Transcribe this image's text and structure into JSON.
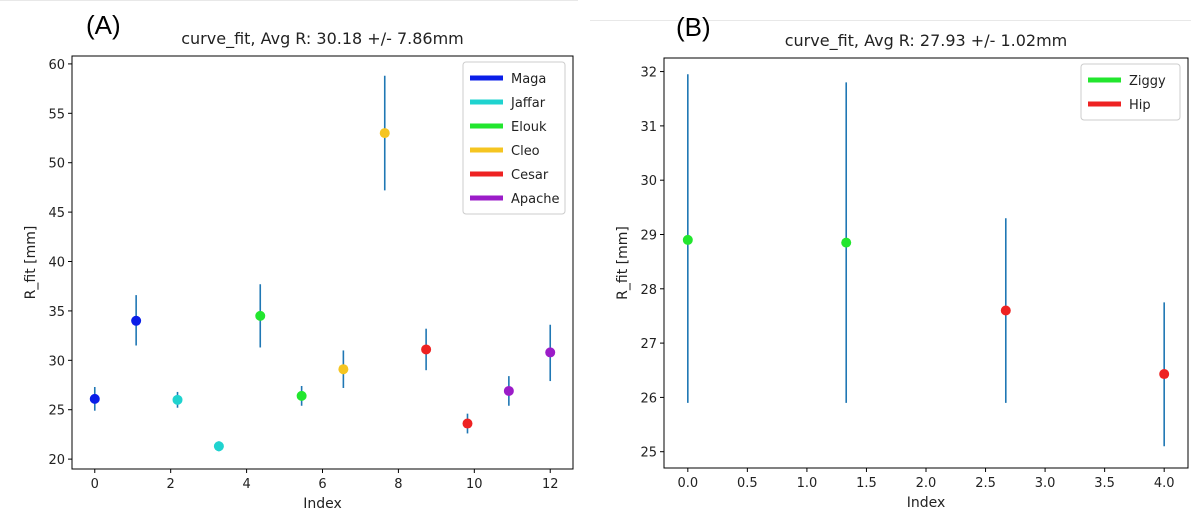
{
  "panels": [
    {
      "letter": "(A)",
      "chart_data": {
        "type": "scatter",
        "title": "curve_fit, Avg R: 30.18 +/- 7.86mm",
        "xlabel": "Index",
        "ylabel": "R_fit [mm]",
        "xlim": [
          -0.6,
          12.6
        ],
        "ylim": [
          19,
          60.8
        ],
        "xticks": [
          0,
          2,
          4,
          6,
          8,
          10,
          12
        ],
        "yticks": [
          20,
          25,
          30,
          35,
          40,
          45,
          50,
          55,
          60
        ],
        "tick_labels_x": [
          "0",
          "2",
          "4",
          "6",
          "8",
          "10",
          "12"
        ],
        "tick_labels_y": [
          "20",
          "25",
          "30",
          "35",
          "40",
          "45",
          "50",
          "55",
          "60"
        ],
        "legend_position": "top-right",
        "errorbar_color": "#1f77b4",
        "series": [
          {
            "name": "Maga",
            "color": "#0a1ee8",
            "points": [
              [
                0,
                26.1,
                24.9,
                27.3
              ],
              [
                1.09,
                34.0,
                31.5,
                36.6
              ]
            ]
          },
          {
            "name": "Jaffar",
            "color": "#1fd3cf",
            "points": [
              [
                2.18,
                26.0,
                25.2,
                26.8
              ],
              [
                3.27,
                21.3,
                20.8,
                21.8
              ]
            ]
          },
          {
            "name": "Elouk",
            "color": "#22e62e",
            "points": [
              [
                4.36,
                34.5,
                31.3,
                37.7
              ],
              [
                5.45,
                26.4,
                25.4,
                27.4
              ]
            ]
          },
          {
            "name": "Cleo",
            "color": "#f5c521",
            "points": [
              [
                6.55,
                29.1,
                27.2,
                31.0
              ],
              [
                7.64,
                53.0,
                47.2,
                58.8
              ]
            ]
          },
          {
            "name": "Cesar",
            "color": "#ee2222",
            "points": [
              [
                8.73,
                31.1,
                29.0,
                33.2
              ],
              [
                9.82,
                23.6,
                22.6,
                24.6
              ]
            ]
          },
          {
            "name": "Apache",
            "color": "#9b1cc8",
            "points": [
              [
                10.91,
                26.9,
                25.4,
                28.4
              ],
              [
                12,
                30.8,
                27.9,
                33.6
              ]
            ]
          }
        ]
      }
    },
    {
      "letter": "(B)",
      "chart_data": {
        "type": "scatter",
        "title": "curve_fit, Avg R: 27.93 +/- 1.02mm",
        "xlabel": "Index",
        "ylabel": "R_fit [mm]",
        "xlim": [
          -0.2,
          4.2
        ],
        "ylim": [
          24.7,
          32.25
        ],
        "xticks": [
          0,
          0.5,
          1,
          1.5,
          2,
          2.5,
          3,
          3.5,
          4
        ],
        "yticks": [
          25,
          26,
          27,
          28,
          29,
          30,
          31,
          32
        ],
        "tick_labels_x": [
          "0.0",
          "0.5",
          "1.0",
          "1.5",
          "2.0",
          "2.5",
          "3.0",
          "3.5",
          "4.0"
        ],
        "tick_labels_y": [
          "25",
          "26",
          "27",
          "28",
          "29",
          "30",
          "31",
          "32"
        ],
        "legend_position": "top-right",
        "errorbar_color": "#1f77b4",
        "series": [
          {
            "name": "Ziggy",
            "color": "#22e62e",
            "points": [
              [
                0,
                28.9,
                25.9,
                31.95
              ],
              [
                1.33,
                28.85,
                25.9,
                31.8
              ]
            ]
          },
          {
            "name": "Hip",
            "color": "#ee2222",
            "points": [
              [
                2.67,
                27.6,
                25.9,
                29.3
              ],
              [
                4,
                26.43,
                25.1,
                27.75
              ]
            ]
          }
        ]
      }
    }
  ]
}
